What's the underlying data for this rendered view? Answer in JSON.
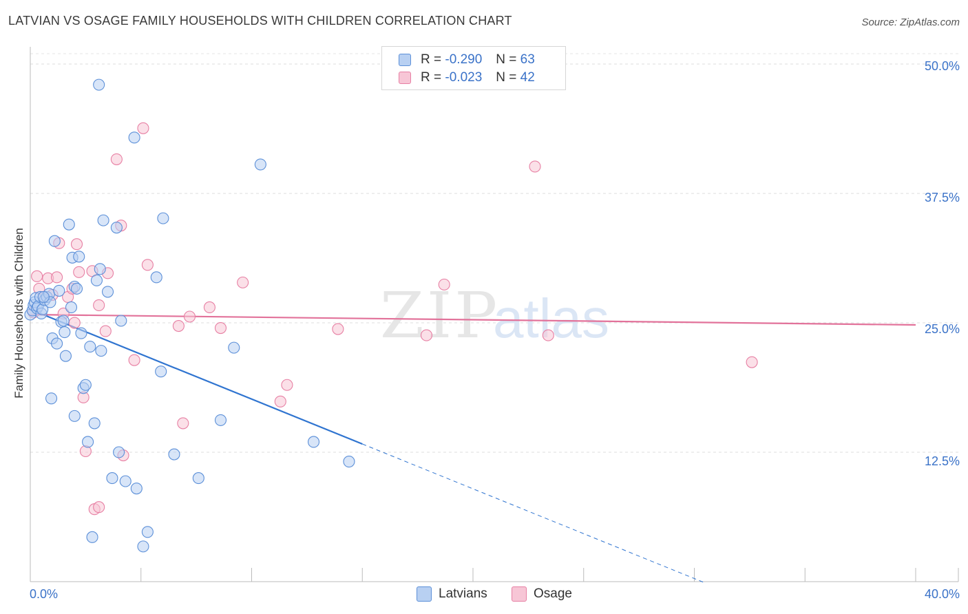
{
  "title": "LATVIAN VS OSAGE FAMILY HOUSEHOLDS WITH CHILDREN CORRELATION CHART",
  "source": "Source: ZipAtlas.com",
  "colors": {
    "latvians": "#5b8fd8",
    "latvians_fill": "#b8d0f2",
    "osage": "#e77fa3",
    "osage_fill": "#f7c6d6",
    "blue_line": "#2f74d0",
    "pink_line": "#e2729a",
    "accent_text": "#3a72c8"
  },
  "legend_top": {
    "rows": [
      {
        "r_label": "R =",
        "r_value": "-0.290",
        "n_label": "N =",
        "n_value": "63"
      },
      {
        "r_label": "R =",
        "r_value": "-0.023",
        "n_label": "N =",
        "n_value": "42"
      }
    ]
  },
  "legend_bottom": {
    "latvians": "Latvians",
    "osage": "Osage"
  },
  "watermark": {
    "zip": "ZIP",
    "atlas": "atlas"
  },
  "chart_data": {
    "type": "scatter",
    "title": "LATVIAN VS OSAGE FAMILY HOUSEHOLDS WITH CHILDREN CORRELATION CHART",
    "xlabel": "",
    "ylabel": "Family Households with Children",
    "xlim": [
      0,
      40
    ],
    "ylim": [
      0,
      51
    ],
    "x_tick_labels": [
      "0.0%",
      "40.0%"
    ],
    "y_tick_labels": [
      "12.5%",
      "25.0%",
      "37.5%",
      "50.0%"
    ],
    "y_ticks": [
      12.5,
      25.0,
      37.5,
      50.0
    ],
    "grid": true,
    "legend_placement": "bottom-center",
    "series": [
      {
        "name": "Latvians",
        "r": -0.29,
        "n": 63,
        "trend": {
          "x0": 0.0,
          "y0": 26.3,
          "x1": 15.0,
          "y1": 13.3,
          "dashed_to_x": 30.5
        },
        "points": [
          [
            0.0,
            25.8
          ],
          [
            0.1,
            26.2
          ],
          [
            0.15,
            26.7
          ],
          [
            0.2,
            27.0
          ],
          [
            0.25,
            27.4
          ],
          [
            0.3,
            26.4
          ],
          [
            0.35,
            26.6
          ],
          [
            0.45,
            27.5
          ],
          [
            0.5,
            25.9
          ],
          [
            0.55,
            26.3
          ],
          [
            0.65,
            27.2
          ],
          [
            0.75,
            27.5
          ],
          [
            0.85,
            27.8
          ],
          [
            0.9,
            27.0
          ],
          [
            1.0,
            23.5
          ],
          [
            1.1,
            32.9
          ],
          [
            1.2,
            23.0
          ],
          [
            1.3,
            28.1
          ],
          [
            1.4,
            25.1
          ],
          [
            1.5,
            25.2
          ],
          [
            1.55,
            24.1
          ],
          [
            1.6,
            21.8
          ],
          [
            1.75,
            34.5
          ],
          [
            1.85,
            26.5
          ],
          [
            1.9,
            31.3
          ],
          [
            2.0,
            28.5
          ],
          [
            2.1,
            28.3
          ],
          [
            2.2,
            31.4
          ],
          [
            2.3,
            24.0
          ],
          [
            2.4,
            18.7
          ],
          [
            2.5,
            19.0
          ],
          [
            2.6,
            13.5
          ],
          [
            2.7,
            22.7
          ],
          [
            2.8,
            4.3
          ],
          [
            2.9,
            15.3
          ],
          [
            3.0,
            29.1
          ],
          [
            3.1,
            48.0
          ],
          [
            3.15,
            30.2
          ],
          [
            3.2,
            22.3
          ],
          [
            3.3,
            34.9
          ],
          [
            3.5,
            28.0
          ],
          [
            3.7,
            10.0
          ],
          [
            3.9,
            34.2
          ],
          [
            4.0,
            12.5
          ],
          [
            4.1,
            25.2
          ],
          [
            4.3,
            9.7
          ],
          [
            4.7,
            42.9
          ],
          [
            4.8,
            9.0
          ],
          [
            5.1,
            3.4
          ],
          [
            5.3,
            4.8
          ],
          [
            5.7,
            29.4
          ],
          [
            5.9,
            20.3
          ],
          [
            6.0,
            35.1
          ],
          [
            6.5,
            12.3
          ],
          [
            7.6,
            10.0
          ],
          [
            8.6,
            15.6
          ],
          [
            9.2,
            22.6
          ],
          [
            10.4,
            40.3
          ],
          [
            12.8,
            13.5
          ],
          [
            14.4,
            11.6
          ],
          [
            0.95,
            17.7
          ],
          [
            2.0,
            16.0
          ],
          [
            0.6,
            27.5
          ]
        ]
      },
      {
        "name": "Osage",
        "r": -0.023,
        "n": 42,
        "trend": {
          "x0": 0.0,
          "y0": 25.8,
          "x1": 40.0,
          "y1": 24.8
        },
        "points": [
          [
            0.15,
            26.0
          ],
          [
            0.3,
            29.5
          ],
          [
            0.4,
            28.3
          ],
          [
            0.6,
            27.5
          ],
          [
            0.8,
            29.3
          ],
          [
            1.0,
            27.7
          ],
          [
            1.2,
            29.4
          ],
          [
            1.3,
            32.7
          ],
          [
            1.5,
            25.9
          ],
          [
            1.7,
            27.5
          ],
          [
            1.9,
            28.3
          ],
          [
            2.0,
            25.0
          ],
          [
            2.1,
            32.6
          ],
          [
            2.2,
            29.9
          ],
          [
            2.4,
            17.8
          ],
          [
            2.5,
            12.6
          ],
          [
            2.8,
            30.0
          ],
          [
            2.9,
            7.0
          ],
          [
            3.1,
            26.7
          ],
          [
            3.1,
            7.2
          ],
          [
            3.4,
            24.2
          ],
          [
            3.5,
            29.8
          ],
          [
            4.1,
            34.4
          ],
          [
            4.2,
            12.2
          ],
          [
            4.7,
            21.4
          ],
          [
            5.1,
            43.8
          ],
          [
            5.3,
            30.6
          ],
          [
            6.7,
            24.7
          ],
          [
            6.9,
            15.3
          ],
          [
            7.2,
            25.6
          ],
          [
            8.1,
            26.5
          ],
          [
            8.6,
            24.5
          ],
          [
            9.6,
            28.9
          ],
          [
            11.3,
            17.4
          ],
          [
            11.6,
            19.0
          ],
          [
            13.9,
            24.4
          ],
          [
            17.9,
            23.8
          ],
          [
            18.7,
            28.7
          ],
          [
            3.9,
            40.8
          ],
          [
            22.8,
            40.1
          ],
          [
            23.4,
            23.8
          ],
          [
            32.6,
            21.2
          ]
        ]
      }
    ]
  }
}
